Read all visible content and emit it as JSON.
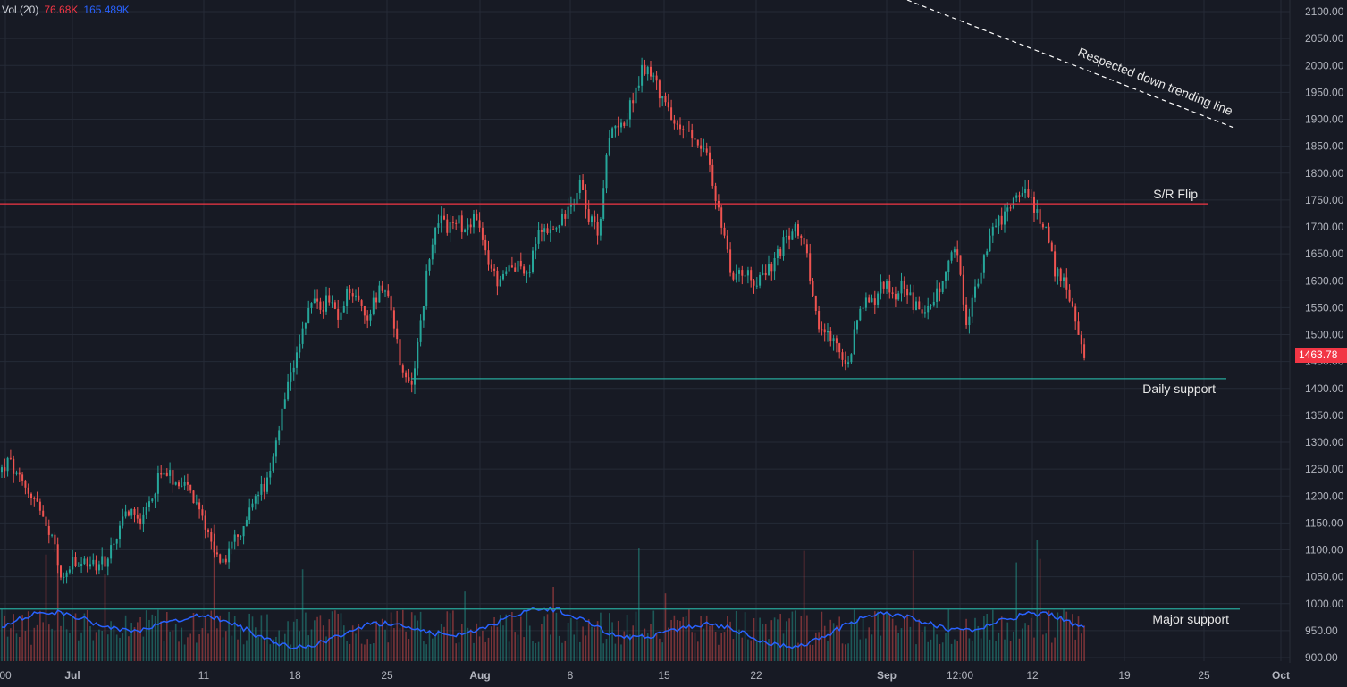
{
  "chart_data": {
    "type": "candlestick",
    "volume_legend": {
      "title": "Vol (20)",
      "value": "76.68K",
      "ma_value": "165.489K"
    },
    "last_price_label": "1463.78",
    "y_ticks": [
      "2100.00",
      "2050.00",
      "2000.00",
      "1950.00",
      "1900.00",
      "1850.00",
      "1800.00",
      "1750.00",
      "1700.00",
      "1650.00",
      "1600.00",
      "1550.00",
      "1500.00",
      "1450.00",
      "1400.00",
      "1350.00",
      "1300.00",
      "1250.00",
      "1200.00",
      "1150.00",
      "1100.00",
      "1050.00",
      "1000.00",
      "950.00",
      "900.00"
    ],
    "x_ticks": [
      "00",
      "Jul",
      "11",
      "18",
      "25",
      "Aug",
      "8",
      "15",
      "22",
      "Sep",
      "12:00",
      "12",
      "19",
      "25",
      "Oct"
    ],
    "ylim": [
      896,
      2116
    ],
    "close_path": [
      [
        0,
        1245
      ],
      [
        10,
        1265
      ],
      [
        20,
        1230
      ],
      [
        30,
        1210
      ],
      [
        40,
        1195
      ],
      [
        50,
        1140
      ],
      [
        60,
        1110
      ],
      [
        70,
        1040
      ],
      [
        80,
        1075
      ],
      [
        90,
        1065
      ],
      [
        100,
        1080
      ],
      [
        110,
        1070
      ],
      [
        120,
        1085
      ],
      [
        130,
        1110
      ],
      [
        140,
        1165
      ],
      [
        150,
        1180
      ],
      [
        160,
        1150
      ],
      [
        170,
        1200
      ],
      [
        180,
        1250
      ],
      [
        190,
        1235
      ],
      [
        200,
        1230
      ],
      [
        210,
        1215
      ],
      [
        220,
        1175
      ],
      [
        230,
        1150
      ],
      [
        240,
        1095
      ],
      [
        250,
        1075
      ],
      [
        260,
        1110
      ],
      [
        270,
        1130
      ],
      [
        280,
        1180
      ],
      [
        290,
        1210
      ],
      [
        300,
        1225
      ],
      [
        310,
        1300
      ],
      [
        320,
        1390
      ],
      [
        330,
        1440
      ],
      [
        340,
        1510
      ],
      [
        350,
        1570
      ],
      [
        360,
        1545
      ],
      [
        370,
        1575
      ],
      [
        380,
        1520
      ],
      [
        390,
        1590
      ],
      [
        400,
        1565
      ],
      [
        410,
        1535
      ],
      [
        420,
        1565
      ],
      [
        430,
        1600
      ],
      [
        440,
        1535
      ],
      [
        450,
        1420
      ],
      [
        460,
        1405
      ],
      [
        470,
        1510
      ],
      [
        480,
        1645
      ],
      [
        490,
        1720
      ],
      [
        500,
        1700
      ],
      [
        510,
        1715
      ],
      [
        520,
        1695
      ],
      [
        530,
        1720
      ],
      [
        540,
        1670
      ],
      [
        550,
        1620
      ],
      [
        560,
        1590
      ],
      [
        570,
        1625
      ],
      [
        580,
        1635
      ],
      [
        590,
        1600
      ],
      [
        600,
        1680
      ],
      [
        610,
        1700
      ],
      [
        620,
        1690
      ],
      [
        630,
        1720
      ],
      [
        640,
        1745
      ],
      [
        650,
        1790
      ],
      [
        660,
        1710
      ],
      [
        670,
        1695
      ],
      [
        680,
        1850
      ],
      [
        690,
        1900
      ],
      [
        700,
        1890
      ],
      [
        710,
        1955
      ],
      [
        720,
        1995
      ],
      [
        730,
        1990
      ],
      [
        740,
        1940
      ],
      [
        750,
        1910
      ],
      [
        760,
        1875
      ],
      [
        770,
        1890
      ],
      [
        780,
        1860
      ],
      [
        790,
        1840
      ],
      [
        800,
        1755
      ],
      [
        810,
        1685
      ],
      [
        820,
        1605
      ],
      [
        830,
        1620
      ],
      [
        840,
        1605
      ],
      [
        850,
        1600
      ],
      [
        860,
        1620
      ],
      [
        870,
        1645
      ],
      [
        880,
        1680
      ],
      [
        890,
        1700
      ],
      [
        900,
        1680
      ],
      [
        910,
        1560
      ],
      [
        920,
        1500
      ],
      [
        930,
        1490
      ],
      [
        940,
        1470
      ],
      [
        950,
        1445
      ],
      [
        960,
        1540
      ],
      [
        970,
        1570
      ],
      [
        980,
        1560
      ],
      [
        990,
        1605
      ],
      [
        1000,
        1570
      ],
      [
        1010,
        1600
      ],
      [
        1020,
        1560
      ],
      [
        1030,
        1545
      ],
      [
        1040,
        1560
      ],
      [
        1050,
        1575
      ],
      [
        1060,
        1620
      ],
      [
        1070,
        1670
      ],
      [
        1080,
        1510
      ],
      [
        1090,
        1580
      ],
      [
        1100,
        1640
      ],
      [
        1110,
        1700
      ],
      [
        1120,
        1715
      ],
      [
        1130,
        1730
      ],
      [
        1140,
        1770
      ],
      [
        1150,
        1760
      ],
      [
        1160,
        1730
      ],
      [
        1170,
        1700
      ],
      [
        1180,
        1620
      ],
      [
        1190,
        1600
      ],
      [
        1200,
        1550
      ],
      [
        1205,
        1500
      ],
      [
        1210,
        1470
      ],
      [
        1215,
        1463.78
      ]
    ],
    "annotations": [
      {
        "text": "S/R Flip",
        "price": 1743,
        "x_from": 0,
        "x_to": 1352,
        "color": "#f23645"
      },
      {
        "text": "Daily support",
        "price": 1418,
        "x_from": 460,
        "x_to": 1372,
        "color": "#26a69a"
      },
      {
        "text": "Major support",
        "price": 990,
        "x_from": 0,
        "x_to": 1387,
        "color": "#26a69a"
      },
      {
        "text": "Respected down trending line",
        "style": "dashed",
        "color": "#ffffff"
      }
    ],
    "colors": {
      "up": "#26a69a",
      "down": "#ef5350",
      "ma": "#2962ff",
      "grid": "#252a36",
      "background": "#171a24"
    },
    "grid": true
  }
}
